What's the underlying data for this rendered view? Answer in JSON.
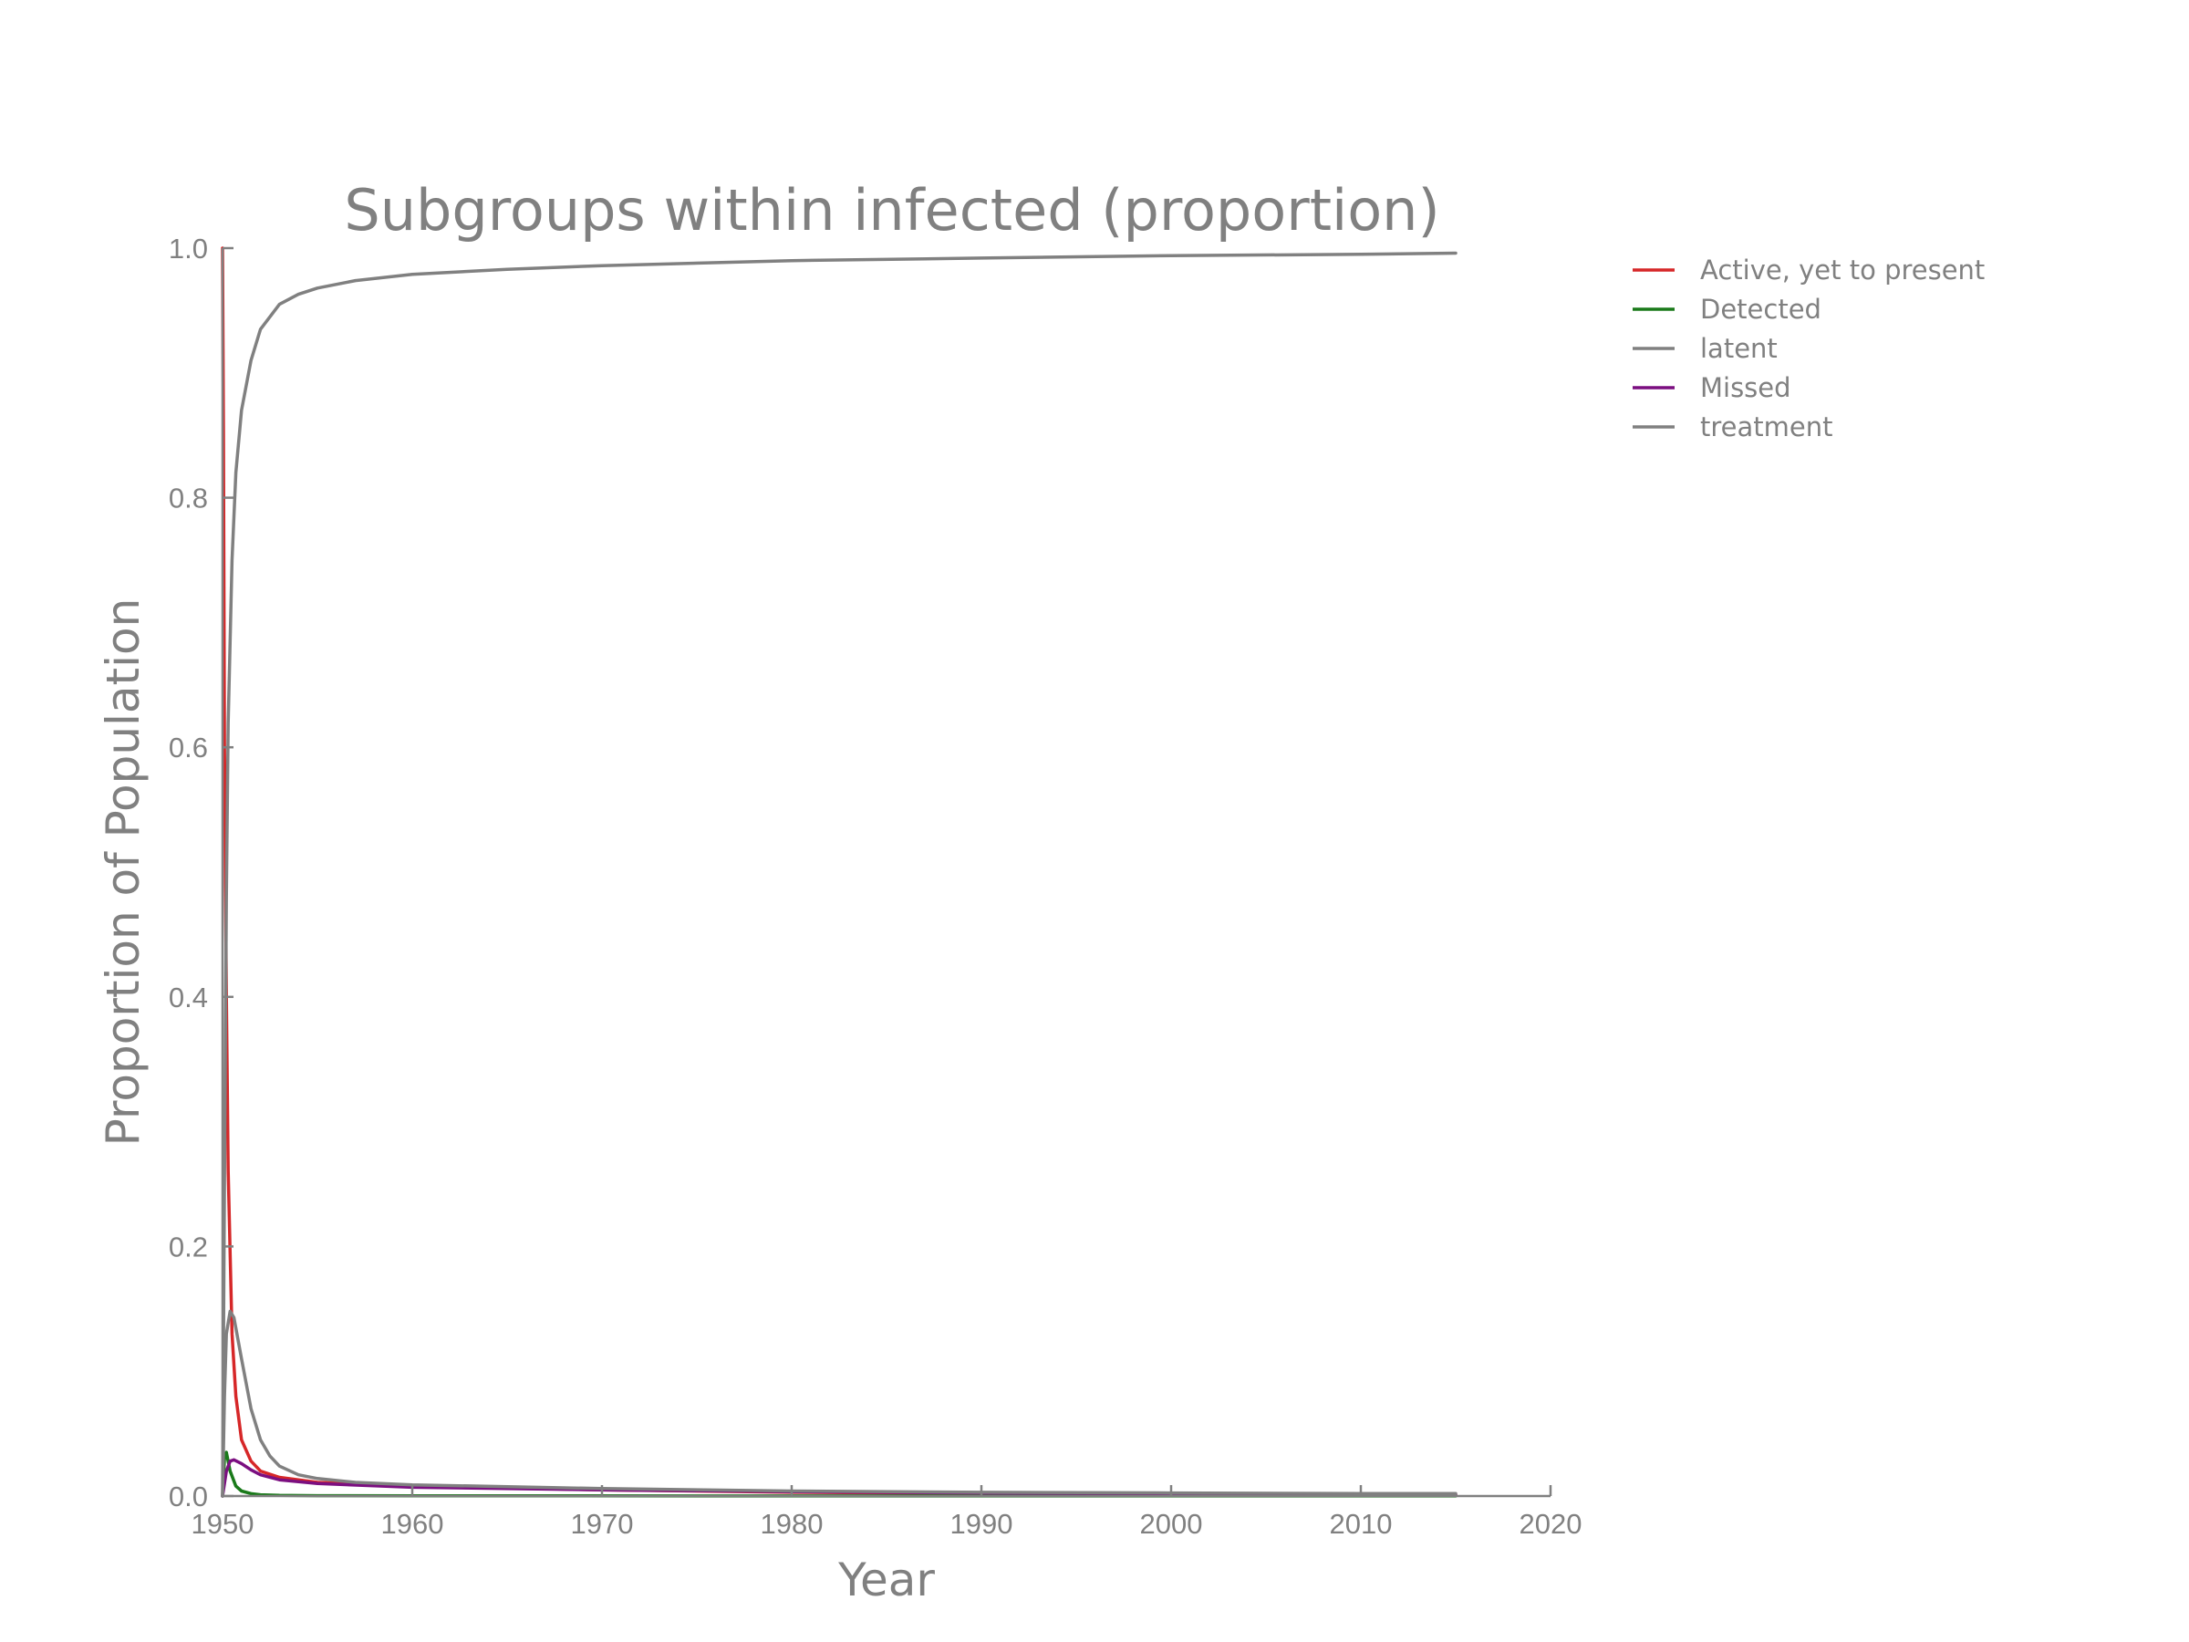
{
  "chart_data": {
    "type": "line",
    "title": "Subgroups within infected (proportion)",
    "xlabel": "Year",
    "ylabel": "Proportion of Population",
    "xlim": [
      1950,
      2020
    ],
    "ylim": [
      0.0,
      1.0
    ],
    "xticks": [
      "1950",
      "1960",
      "1970",
      "1980",
      "1990",
      "2000",
      "2010",
      "2020"
    ],
    "yticks": [
      "0.0",
      "0.2",
      "0.4",
      "0.6",
      "0.8",
      "1.0"
    ],
    "grid": false,
    "legend_position": "top-right, outside plot",
    "series": [
      {
        "name": "Active, yet to present",
        "color": "#d62728",
        "x": [
          1950,
          1950.05,
          1950.1,
          1950.2,
          1950.3,
          1950.5,
          1950.7,
          1951,
          1951.5,
          1952,
          1953,
          1955,
          1960,
          1970,
          1980,
          1990,
          2000,
          2010,
          2015
        ],
        "y": [
          1.0,
          0.85,
          0.6,
          0.4,
          0.26,
          0.13,
          0.08,
          0.045,
          0.028,
          0.02,
          0.015,
          0.011,
          0.008,
          0.005,
          0.003,
          0.002,
          0.0015,
          0.001,
          0.001
        ]
      },
      {
        "name": "Detected",
        "color": "#1a7a1a",
        "x": [
          1950,
          1950.1,
          1950.2,
          1950.4,
          1950.7,
          1951,
          1951.5,
          1952,
          1953,
          1955,
          1960,
          1980,
          2015
        ],
        "y": [
          0.0,
          0.03,
          0.035,
          0.02,
          0.008,
          0.004,
          0.002,
          0.001,
          0.0005,
          0.0003,
          0.0002,
          0.0001,
          0.0001
        ]
      },
      {
        "name": "latent",
        "color": "#808080",
        "x": [
          1950,
          1950.1,
          1950.2,
          1950.3,
          1950.5,
          1950.7,
          1951,
          1951.5,
          1952,
          1953,
          1954,
          1955,
          1957,
          1960,
          1965,
          1970,
          1980,
          1990,
          2000,
          2010,
          2015
        ],
        "y": [
          0.0,
          0.25,
          0.48,
          0.62,
          0.75,
          0.82,
          0.87,
          0.91,
          0.935,
          0.955,
          0.963,
          0.968,
          0.974,
          0.979,
          0.983,
          0.986,
          0.99,
          0.992,
          0.994,
          0.995,
          0.996
        ]
      },
      {
        "name": "Missed",
        "color": "#7b0f80",
        "x": [
          1950,
          1950.2,
          1950.4,
          1950.6,
          1951,
          1951.5,
          1952,
          1953,
          1955,
          1960,
          1970,
          1980,
          1990,
          2000,
          2010,
          2015
        ],
        "y": [
          0.0,
          0.02,
          0.028,
          0.029,
          0.026,
          0.021,
          0.017,
          0.013,
          0.01,
          0.007,
          0.005,
          0.0035,
          0.0025,
          0.002,
          0.0015,
          0.0012
        ]
      },
      {
        "name": "treatment",
        "color": "#808080",
        "x": [
          1950,
          1950.1,
          1950.2,
          1950.4,
          1950.6,
          1951,
          1951.5,
          1952,
          1952.5,
          1953,
          1954,
          1955,
          1957,
          1960,
          1970,
          1980,
          1990,
          2000,
          2010,
          2015
        ],
        "y": [
          0.0,
          0.08,
          0.13,
          0.148,
          0.143,
          0.11,
          0.07,
          0.045,
          0.032,
          0.024,
          0.017,
          0.014,
          0.011,
          0.009,
          0.006,
          0.004,
          0.003,
          0.0025,
          0.002,
          0.002
        ]
      }
    ]
  }
}
